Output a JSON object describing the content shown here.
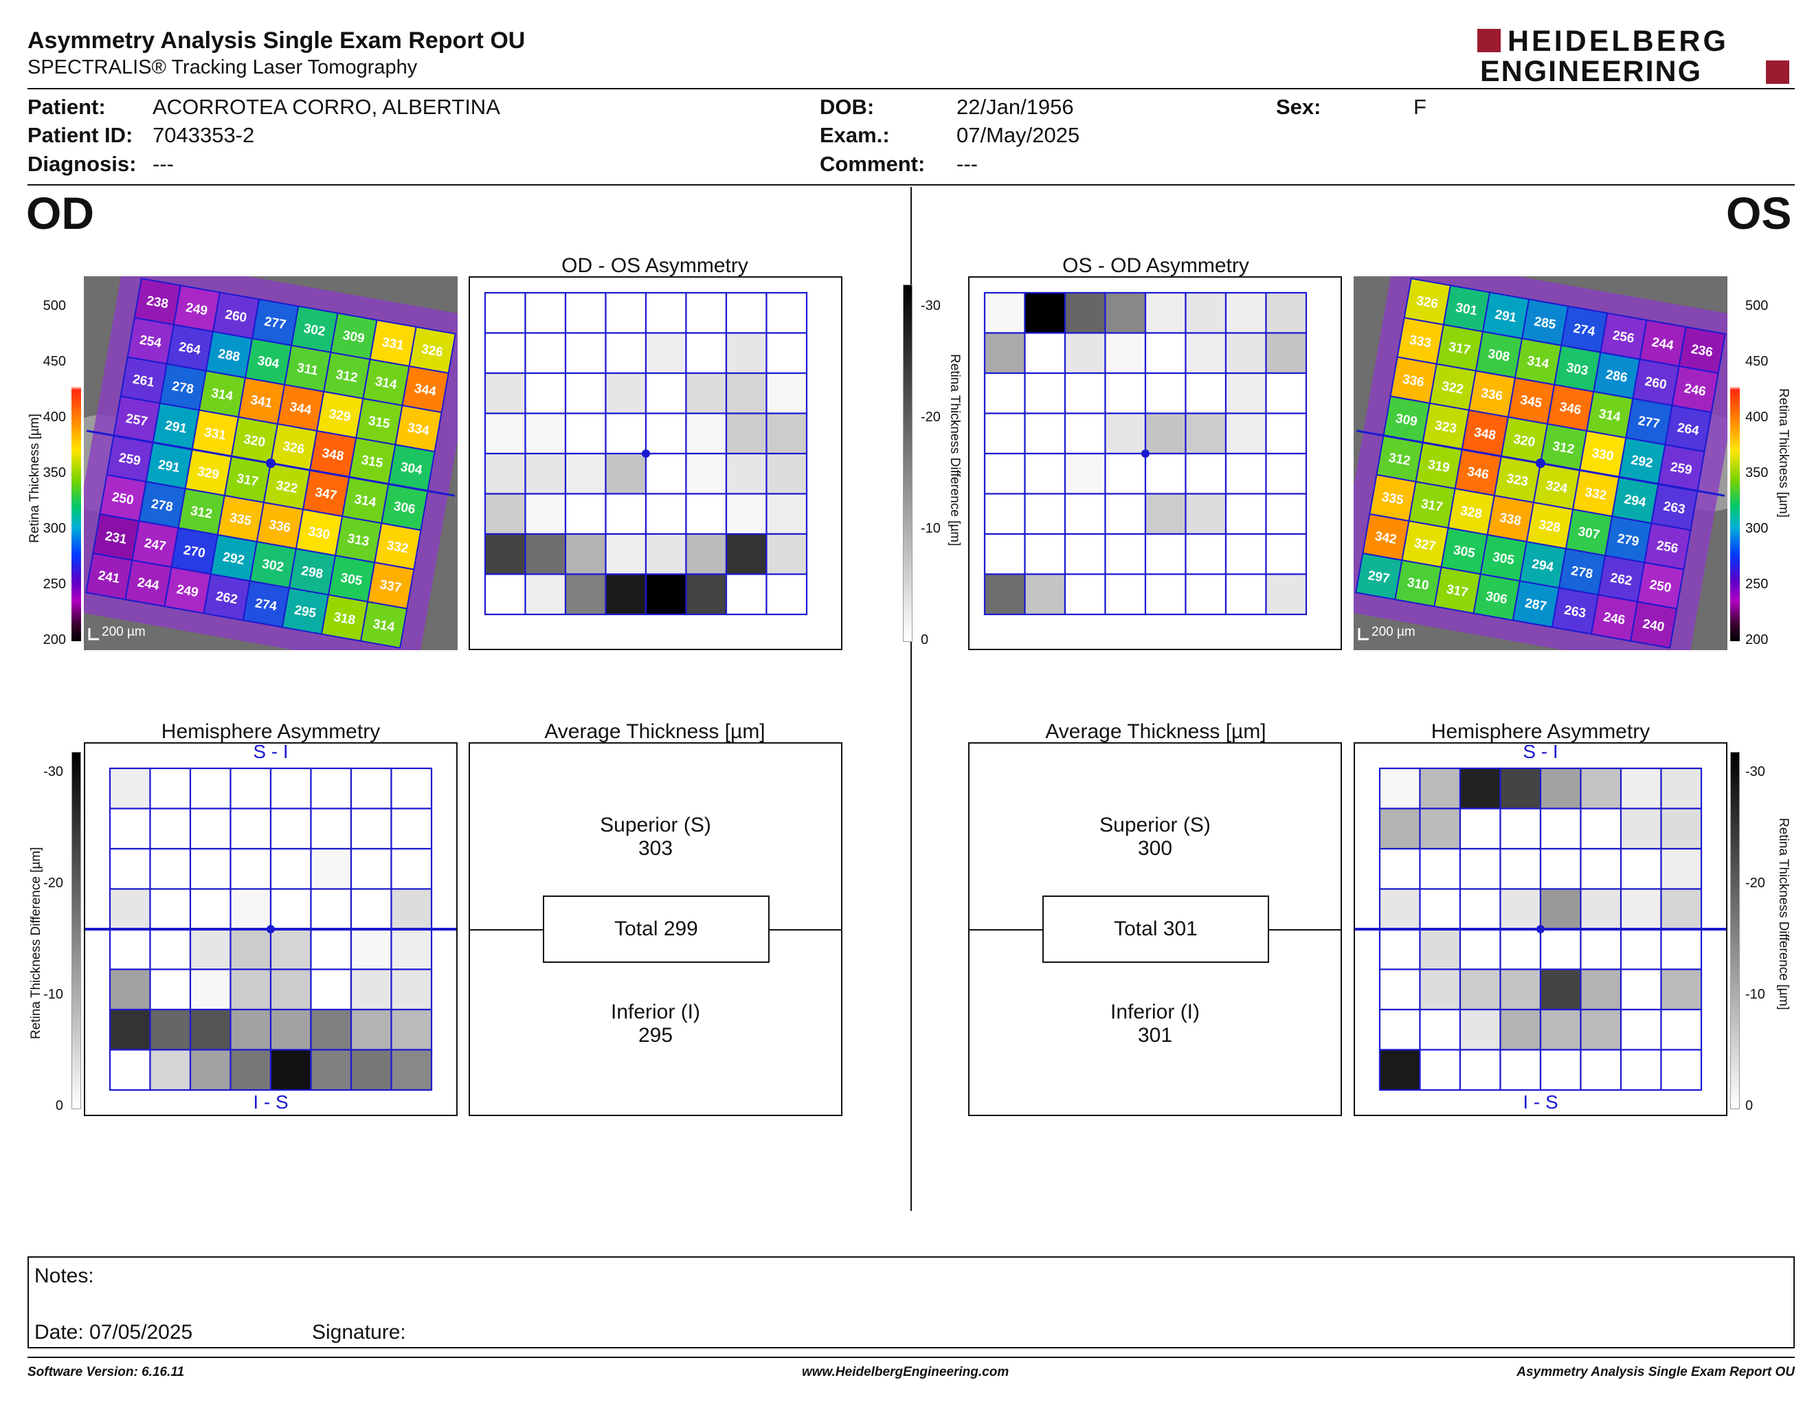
{
  "header": {
    "title": "Asymmetry Analysis Single Exam Report OU",
    "subtitle": "SPECTRALIS® Tracking Laser Tomography",
    "logo_line1": "HEIDELBERG",
    "logo_line2": "ENGINEERING"
  },
  "patient": {
    "patient_label": "Patient:",
    "patient_value": "ACORROTEA CORRO, ALBERTINA",
    "id_label": "Patient ID:",
    "id_value": "7043353-2",
    "diagnosis_label": "Diagnosis:",
    "diagnosis_value": "---",
    "dob_label": "DOB:",
    "dob_value": "22/Jan/1956",
    "exam_label": "Exam.:",
    "exam_value": "07/May/2025",
    "comment_label": "Comment:",
    "comment_value": "---",
    "sex_label": "Sex:",
    "sex_value": "F"
  },
  "od_label": "OD",
  "os_label": "OS",
  "titles": {
    "od_os": "OD - OS Asymmetry",
    "os_od": "OS - OD Asymmetry",
    "hemi": "Hemisphere Asymmetry",
    "avg": "Average Thickness [µm]"
  },
  "scales": {
    "thick_label": "Retina  Thickness [µm]",
    "thick_ticks": [
      "500",
      "450",
      "400",
      "350",
      "300",
      "250",
      "200"
    ],
    "diff_label": "Retina Thickness Difference [µm]",
    "diff_ticks": [
      "-30",
      "-20",
      "-10",
      "0"
    ],
    "scalebar": "200 µm"
  },
  "hemi_labels": {
    "top": "S - I",
    "bottom": "I - S"
  },
  "colors": {
    "grid": "#1a1ad0",
    "diffmax": 30
  },
  "od": {
    "thickness": [
      [
        238,
        249,
        260,
        277,
        302,
        309,
        331,
        326
      ],
      [
        254,
        264,
        288,
        304,
        311,
        312,
        314,
        344
      ],
      [
        261,
        278,
        314,
        341,
        344,
        329,
        315,
        334
      ],
      [
        257,
        291,
        331,
        320,
        326,
        348,
        315,
        304
      ],
      [
        259,
        291,
        329,
        317,
        322,
        347,
        314,
        306
      ],
      [
        250,
        278,
        312,
        335,
        336,
        330,
        313,
        332
      ],
      [
        231,
        247,
        270,
        292,
        302,
        298,
        305,
        337
      ],
      [
        241,
        244,
        249,
        262,
        274,
        295,
        318,
        314
      ]
    ],
    "asym": [
      [
        0,
        0,
        0,
        0,
        0,
        0,
        0,
        0
      ],
      [
        0,
        0,
        0,
        0,
        2,
        0,
        3,
        0
      ],
      [
        3,
        0,
        0,
        3,
        0,
        4,
        5,
        1
      ],
      [
        1,
        1,
        0,
        0,
        0,
        1,
        6,
        6
      ],
      [
        3,
        3,
        2,
        7,
        0,
        1,
        3,
        4
      ],
      [
        6,
        1,
        0,
        0,
        0,
        0,
        1,
        2
      ],
      [
        22,
        17,
        9,
        2,
        3,
        8,
        24,
        4
      ],
      [
        0,
        2,
        15,
        27,
        30,
        22,
        0,
        0
      ]
    ],
    "hemi": [
      [
        2,
        0,
        0,
        0,
        0,
        0,
        0,
        0
      ],
      [
        0,
        0,
        0,
        0,
        0,
        0,
        0,
        0
      ],
      [
        0,
        0,
        0,
        0,
        0,
        1,
        0,
        0
      ],
      [
        3,
        0,
        0,
        1,
        0,
        0,
        0,
        4
      ],
      [
        0,
        0,
        3,
        6,
        5,
        0,
        1,
        2
      ],
      [
        11,
        0,
        1,
        6,
        6,
        0,
        3,
        3
      ],
      [
        24,
        18,
        20,
        11,
        11,
        15,
        9,
        8
      ],
      [
        0,
        5,
        11,
        16,
        28,
        15,
        16,
        14
      ]
    ],
    "superior_label": "Superior (S)",
    "superior": "303",
    "total": "Total 299",
    "inferior_label": "Inferior (I)",
    "inferior": "295"
  },
  "os": {
    "thickness": [
      [
        326,
        301,
        291,
        285,
        274,
        256,
        244,
        236
      ],
      [
        333,
        317,
        308,
        314,
        303,
        286,
        260,
        246
      ],
      [
        336,
        322,
        336,
        345,
        346,
        314,
        277,
        264
      ],
      [
        309,
        323,
        348,
        320,
        312,
        330,
        292,
        259
      ],
      [
        312,
        319,
        346,
        323,
        324,
        332,
        294,
        263
      ],
      [
        335,
        317,
        328,
        338,
        328,
        307,
        279,
        256
      ],
      [
        342,
        327,
        305,
        305,
        294,
        278,
        262,
        250
      ],
      [
        297,
        310,
        317,
        306,
        287,
        263,
        246,
        240
      ]
    ],
    "asym": [
      [
        1,
        30,
        18,
        14,
        2,
        3,
        2,
        4
      ],
      [
        10,
        0,
        3,
        1,
        0,
        2,
        3,
        7
      ],
      [
        0,
        0,
        0,
        0,
        0,
        0,
        2,
        0
      ],
      [
        0,
        0,
        0,
        3,
        7,
        6,
        2,
        0
      ],
      [
        0,
        0,
        1,
        0,
        0,
        0,
        0,
        0
      ],
      [
        0,
        0,
        0,
        0,
        6,
        4,
        0,
        0
      ],
      [
        0,
        0,
        0,
        0,
        0,
        0,
        0,
        0
      ],
      [
        17,
        7,
        0,
        0,
        0,
        0,
        0,
        3
      ]
    ],
    "hemi": [
      [
        1,
        8,
        26,
        22,
        11,
        7,
        2,
        3
      ],
      [
        9,
        8,
        0,
        0,
        0,
        0,
        3,
        4
      ],
      [
        0,
        0,
        0,
        0,
        0,
        0,
        0,
        2
      ],
      [
        3,
        0,
        0,
        3,
        12,
        3,
        2,
        5
      ],
      [
        0,
        4,
        0,
        0,
        0,
        0,
        0,
        0
      ],
      [
        0,
        4,
        6,
        7,
        22,
        9,
        0,
        8
      ],
      [
        0,
        0,
        3,
        9,
        8,
        8,
        0,
        0
      ],
      [
        27,
        0,
        0,
        0,
        0,
        0,
        0,
        0
      ]
    ],
    "superior_label": "Superior (S)",
    "superior": "300",
    "total": "Total 301",
    "inferior_label": "Inferior (I)",
    "inferior": "301"
  },
  "notes": {
    "label": "Notes:",
    "date": "Date: 07/05/2025",
    "signature": "Signature:"
  },
  "footer": {
    "left": "Software Version: 6.16.11",
    "center": "www.HeidelbergEngineering.com",
    "right": "Asymmetry Analysis Single Exam Report OU"
  }
}
